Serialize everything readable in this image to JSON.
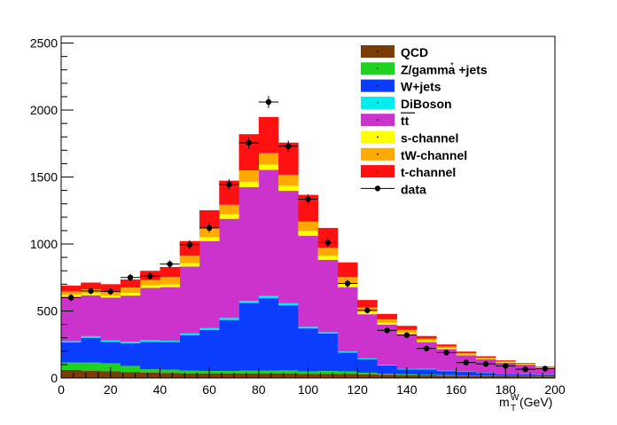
{
  "chart_data": {
    "type": "histogram-stacked",
    "title": "",
    "xlabel": "m",
    "xlabel_super": "W",
    "xlabel_sub": "T",
    "xlabel_unit": "(GeV)",
    "ylabel": "",
    "xlim": [
      0,
      200
    ],
    "ylim": [
      0,
      2550
    ],
    "bin_width": 8,
    "x_ticks": [
      0,
      20,
      40,
      60,
      80,
      100,
      120,
      140,
      160,
      180,
      200
    ],
    "y_ticks": [
      0,
      500,
      1000,
      1500,
      2000,
      2500
    ],
    "bins_low_edge": [
      0,
      8,
      16,
      24,
      32,
      40,
      48,
      56,
      64,
      72,
      80,
      88,
      96,
      104,
      112,
      120,
      128,
      136,
      144,
      152,
      160,
      168,
      176,
      184,
      192
    ],
    "series": [
      {
        "name": "QCD",
        "color": "#7a3d07",
        "values": [
          60,
          55,
          50,
          45,
          40,
          38,
          35,
          35,
          35,
          35,
          35,
          35,
          30,
          30,
          30,
          28,
          25,
          22,
          20,
          18,
          16,
          15,
          14,
          13,
          12
        ]
      },
      {
        "name": "Z/gamma +jets",
        "color": "#1ed31e",
        "values": [
          55,
          60,
          60,
          45,
          25,
          25,
          20,
          18,
          18,
          20,
          20,
          22,
          20,
          22,
          20,
          12,
          8,
          6,
          4,
          4,
          2,
          2,
          2,
          2,
          1
        ]
      },
      {
        "name": "W+jets",
        "color": "#0a3dff",
        "values": [
          150,
          185,
          160,
          170,
          205,
          205,
          265,
          305,
          380,
          505,
          540,
          485,
          320,
          280,
          140,
          100,
          60,
          35,
          40,
          30,
          28,
          20,
          15,
          12,
          10
        ]
      },
      {
        "name": "DiBoson",
        "color": "#00eeee",
        "values": [
          10,
          12,
          10,
          10,
          12,
          10,
          12,
          14,
          15,
          15,
          18,
          15,
          12,
          10,
          8,
          6,
          5,
          4,
          4,
          3,
          3,
          2,
          2,
          2,
          2
        ]
      },
      {
        "name": "t#bar{t}",
        "color": "#cc33cc",
        "values": [
          330,
          305,
          320,
          345,
          390,
          400,
          500,
          650,
          740,
          850,
          940,
          840,
          680,
          540,
          480,
          330,
          300,
          260,
          200,
          160,
          120,
          100,
          80,
          70,
          50
        ]
      },
      {
        "name": "s-channel",
        "color": "#ffff00",
        "values": [
          15,
          15,
          15,
          20,
          20,
          20,
          25,
          30,
          35,
          40,
          40,
          40,
          35,
          30,
          25,
          20,
          15,
          12,
          10,
          8,
          6,
          5,
          4,
          3,
          3
        ]
      },
      {
        "name": "tW-channel",
        "color": "#ffaa00",
        "values": [
          25,
          30,
          30,
          40,
          40,
          55,
          55,
          70,
          70,
          85,
          85,
          80,
          70,
          60,
          50,
          30,
          25,
          20,
          15,
          12,
          10,
          8,
          6,
          5,
          4
        ]
      },
      {
        "name": "t-channel",
        "color": "#ff1111",
        "values": [
          45,
          50,
          55,
          60,
          68,
          75,
          110,
          130,
          180,
          270,
          270,
          240,
          200,
          148,
          110,
          56,
          40,
          30,
          20,
          15,
          12,
          10,
          8,
          5,
          4
        ]
      }
    ],
    "data": {
      "name": "data",
      "color": "#000000",
      "x_centers": [
        4,
        12,
        20,
        28,
        36,
        44,
        52,
        60,
        68,
        76,
        84,
        92,
        100,
        108,
        116,
        124,
        132,
        140,
        148,
        156,
        164,
        172,
        180,
        188,
        196
      ],
      "values": [
        600,
        650,
        645,
        750,
        760,
        850,
        995,
        1120,
        1445,
        1755,
        2060,
        1730,
        1335,
        1010,
        705,
        505,
        355,
        320,
        220,
        190,
        115,
        105,
        90,
        65,
        70
      ],
      "errors": [
        25,
        25,
        25,
        27,
        28,
        29,
        32,
        33,
        38,
        42,
        45,
        42,
        37,
        32,
        27,
        22,
        19,
        18,
        15,
        14,
        11,
        10,
        10,
        8,
        8
      ]
    },
    "legend": {
      "position": "top-right",
      "entries": [
        {
          "label": "QCD",
          "color": "#7a3d07",
          "kind": "box"
        },
        {
          "label": "Z/gamma +jets",
          "color": "#1ed31e",
          "kind": "box"
        },
        {
          "label": "W+jets",
          "color": "#0a3dff",
          "kind": "box"
        },
        {
          "label": "DiBoson",
          "color": "#00eeee",
          "kind": "box"
        },
        {
          "label": "tt",
          "color": "#cc33cc",
          "kind": "box",
          "overline": true
        },
        {
          "label": "s-channel",
          "color": "#ffff00",
          "kind": "box"
        },
        {
          "label": "tW-channel",
          "color": "#ffaa00",
          "kind": "box"
        },
        {
          "label": "t-channel",
          "color": "#ff1111",
          "kind": "box"
        },
        {
          "label": "data",
          "color": "#000000",
          "kind": "marker"
        }
      ]
    }
  }
}
